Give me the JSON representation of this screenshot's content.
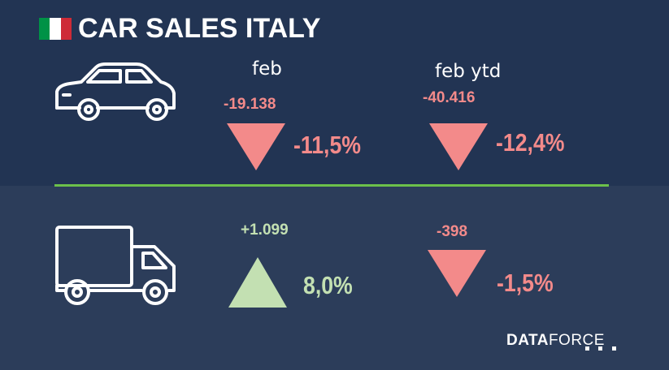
{
  "header": {
    "title": "CAR SALES ITALY",
    "flag_colors": [
      "#009246",
      "#ffffff",
      "#ce2b37"
    ],
    "flag_icon": "italy-flag-icon"
  },
  "columns": {
    "month_label": "feb",
    "ytd_label": "feb ytd"
  },
  "rows": [
    {
      "name": "cars",
      "icon": "car-icon",
      "month": {
        "abs": "-19.138",
        "pct": "-11,5%",
        "direction": "down"
      },
      "ytd": {
        "abs": "-40.416",
        "pct": "-12,4%",
        "direction": "down"
      }
    },
    {
      "name": "light-commercial",
      "icon": "truck-icon",
      "month": {
        "abs": "+1.099",
        "pct": "8,0%",
        "direction": "up"
      },
      "ytd": {
        "abs": "-398",
        "pct": "-1,5%",
        "direction": "down"
      }
    }
  ],
  "brand": {
    "bold": "DATA",
    "light": "FORCE"
  },
  "colors": {
    "negative": "#f38a8a",
    "positive": "#c3e0b2",
    "divider": "#6cc04a",
    "top_bg": "#223453",
    "bottom_bg": "#2c3d5a"
  }
}
